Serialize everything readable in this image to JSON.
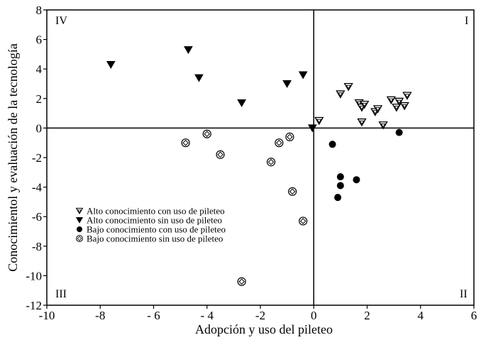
{
  "chart_data": {
    "type": "scatter",
    "xlabel": "Adopción y uso del pileteo",
    "ylabel": "Conocimientol y evaluación de la tecnología",
    "xlim": [
      -10,
      6
    ],
    "ylim": [
      -12,
      8
    ],
    "xticks": [
      -10,
      -8,
      -6,
      -4,
      -2,
      0,
      2,
      4,
      6
    ],
    "yticks": [
      8,
      6,
      4,
      2,
      0,
      -2,
      -4,
      -6,
      -8,
      -10,
      -12
    ],
    "xtick_labels": [
      "-10",
      "-8",
      "- 6",
      "- 4",
      "-2",
      "0",
      "2",
      "4",
      "6"
    ],
    "ytick_labels": [
      "8",
      "6",
      "4",
      "2",
      "0",
      "-2",
      "-4",
      "-6",
      "-8",
      "-10",
      "-12"
    ],
    "grid": false,
    "reference_lines": {
      "x": 0,
      "y": 0
    },
    "quadrant_labels": {
      "top_right": "I",
      "bottom_right": "II",
      "bottom_left": "III",
      "top_left": "IV"
    },
    "legend_position": "left-center",
    "series": [
      {
        "name": "Alto conocimiento con uso de pileteo",
        "marker": "triangle-down-open",
        "points": [
          [
            0.2,
            0.5
          ],
          [
            1.0,
            2.3
          ],
          [
            1.3,
            2.8
          ],
          [
            1.7,
            1.7
          ],
          [
            1.8,
            1.4
          ],
          [
            1.9,
            1.6
          ],
          [
            1.8,
            0.4
          ],
          [
            2.3,
            1.1
          ],
          [
            2.4,
            1.3
          ],
          [
            2.6,
            0.2
          ],
          [
            2.9,
            1.9
          ],
          [
            3.1,
            1.4
          ],
          [
            3.2,
            1.8
          ],
          [
            3.4,
            1.5
          ],
          [
            3.5,
            2.2
          ]
        ]
      },
      {
        "name": "Alto conocimiento sin uso de pileteo",
        "marker": "triangle-down-filled",
        "points": [
          [
            -7.6,
            4.3
          ],
          [
            -4.7,
            5.3
          ],
          [
            -4.3,
            3.4
          ],
          [
            -2.7,
            1.7
          ],
          [
            -1.0,
            3.0
          ],
          [
            -0.4,
            3.6
          ],
          [
            -0.05,
            0.0
          ]
        ]
      },
      {
        "name": "Bajo conocimiento con uso de pileteo",
        "marker": "circle-filled",
        "points": [
          [
            0.7,
            -1.1
          ],
          [
            0.9,
            -4.7
          ],
          [
            1.0,
            -3.3
          ],
          [
            1.0,
            -3.9
          ],
          [
            1.6,
            -3.5
          ],
          [
            3.2,
            -0.3
          ]
        ]
      },
      {
        "name": "Bajo conocimiento sin uso de pileteo",
        "marker": "circle-open-diamond",
        "points": [
          [
            -4.8,
            -1.0
          ],
          [
            -4.0,
            -0.4
          ],
          [
            -3.5,
            -1.8
          ],
          [
            -2.7,
            -10.4
          ],
          [
            -1.6,
            -2.3
          ],
          [
            -1.3,
            -1.0
          ],
          [
            -0.9,
            -0.6
          ],
          [
            -0.8,
            -4.3
          ],
          [
            -0.4,
            -6.3
          ]
        ]
      }
    ]
  }
}
